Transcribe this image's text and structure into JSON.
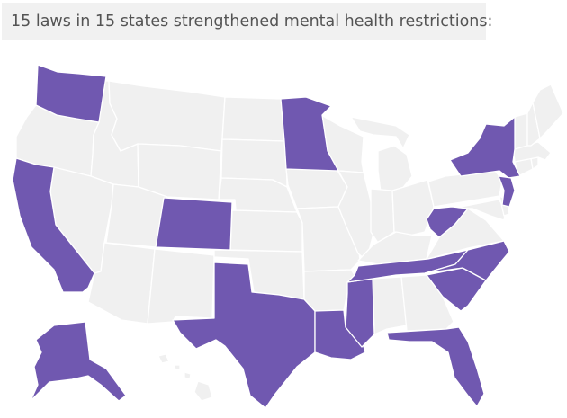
{
  "caption": "15 laws in 15 states strengthened mental health restrictions:",
  "colors": {
    "highlight": "#7058b0",
    "base": "#f0f0f0",
    "border": "#ffffff",
    "caption_bg": "#f1f1f1",
    "caption_text": "#545454"
  },
  "chart_data": {
    "type": "choropleth",
    "highlighted_states": [
      "Washington",
      "California",
      "Colorado",
      "Texas",
      "Minnesota",
      "Louisiana",
      "Mississippi",
      "Tennessee",
      "Florida",
      "South Carolina",
      "North Carolina",
      "West Virginia",
      "New York",
      "New Jersey",
      "Alaska"
    ],
    "other_states": [
      "Oregon",
      "Idaho",
      "Nevada",
      "Montana",
      "Wyoming",
      "Utah",
      "Arizona",
      "New Mexico",
      "North Dakota",
      "South Dakota",
      "Nebraska",
      "Kansas",
      "Oklahoma",
      "Iowa",
      "Missouri",
      "Arkansas",
      "Wisconsin",
      "Illinois",
      "Michigan",
      "Indiana",
      "Ohio",
      "Kentucky",
      "Alabama",
      "Georgia",
      "Virginia",
      "Pennsylvania",
      "Maryland",
      "Delaware",
      "Connecticut",
      "Rhode Island",
      "Massachusetts",
      "Vermont",
      "New Hampshire",
      "Maine",
      "Hawaii"
    ]
  }
}
